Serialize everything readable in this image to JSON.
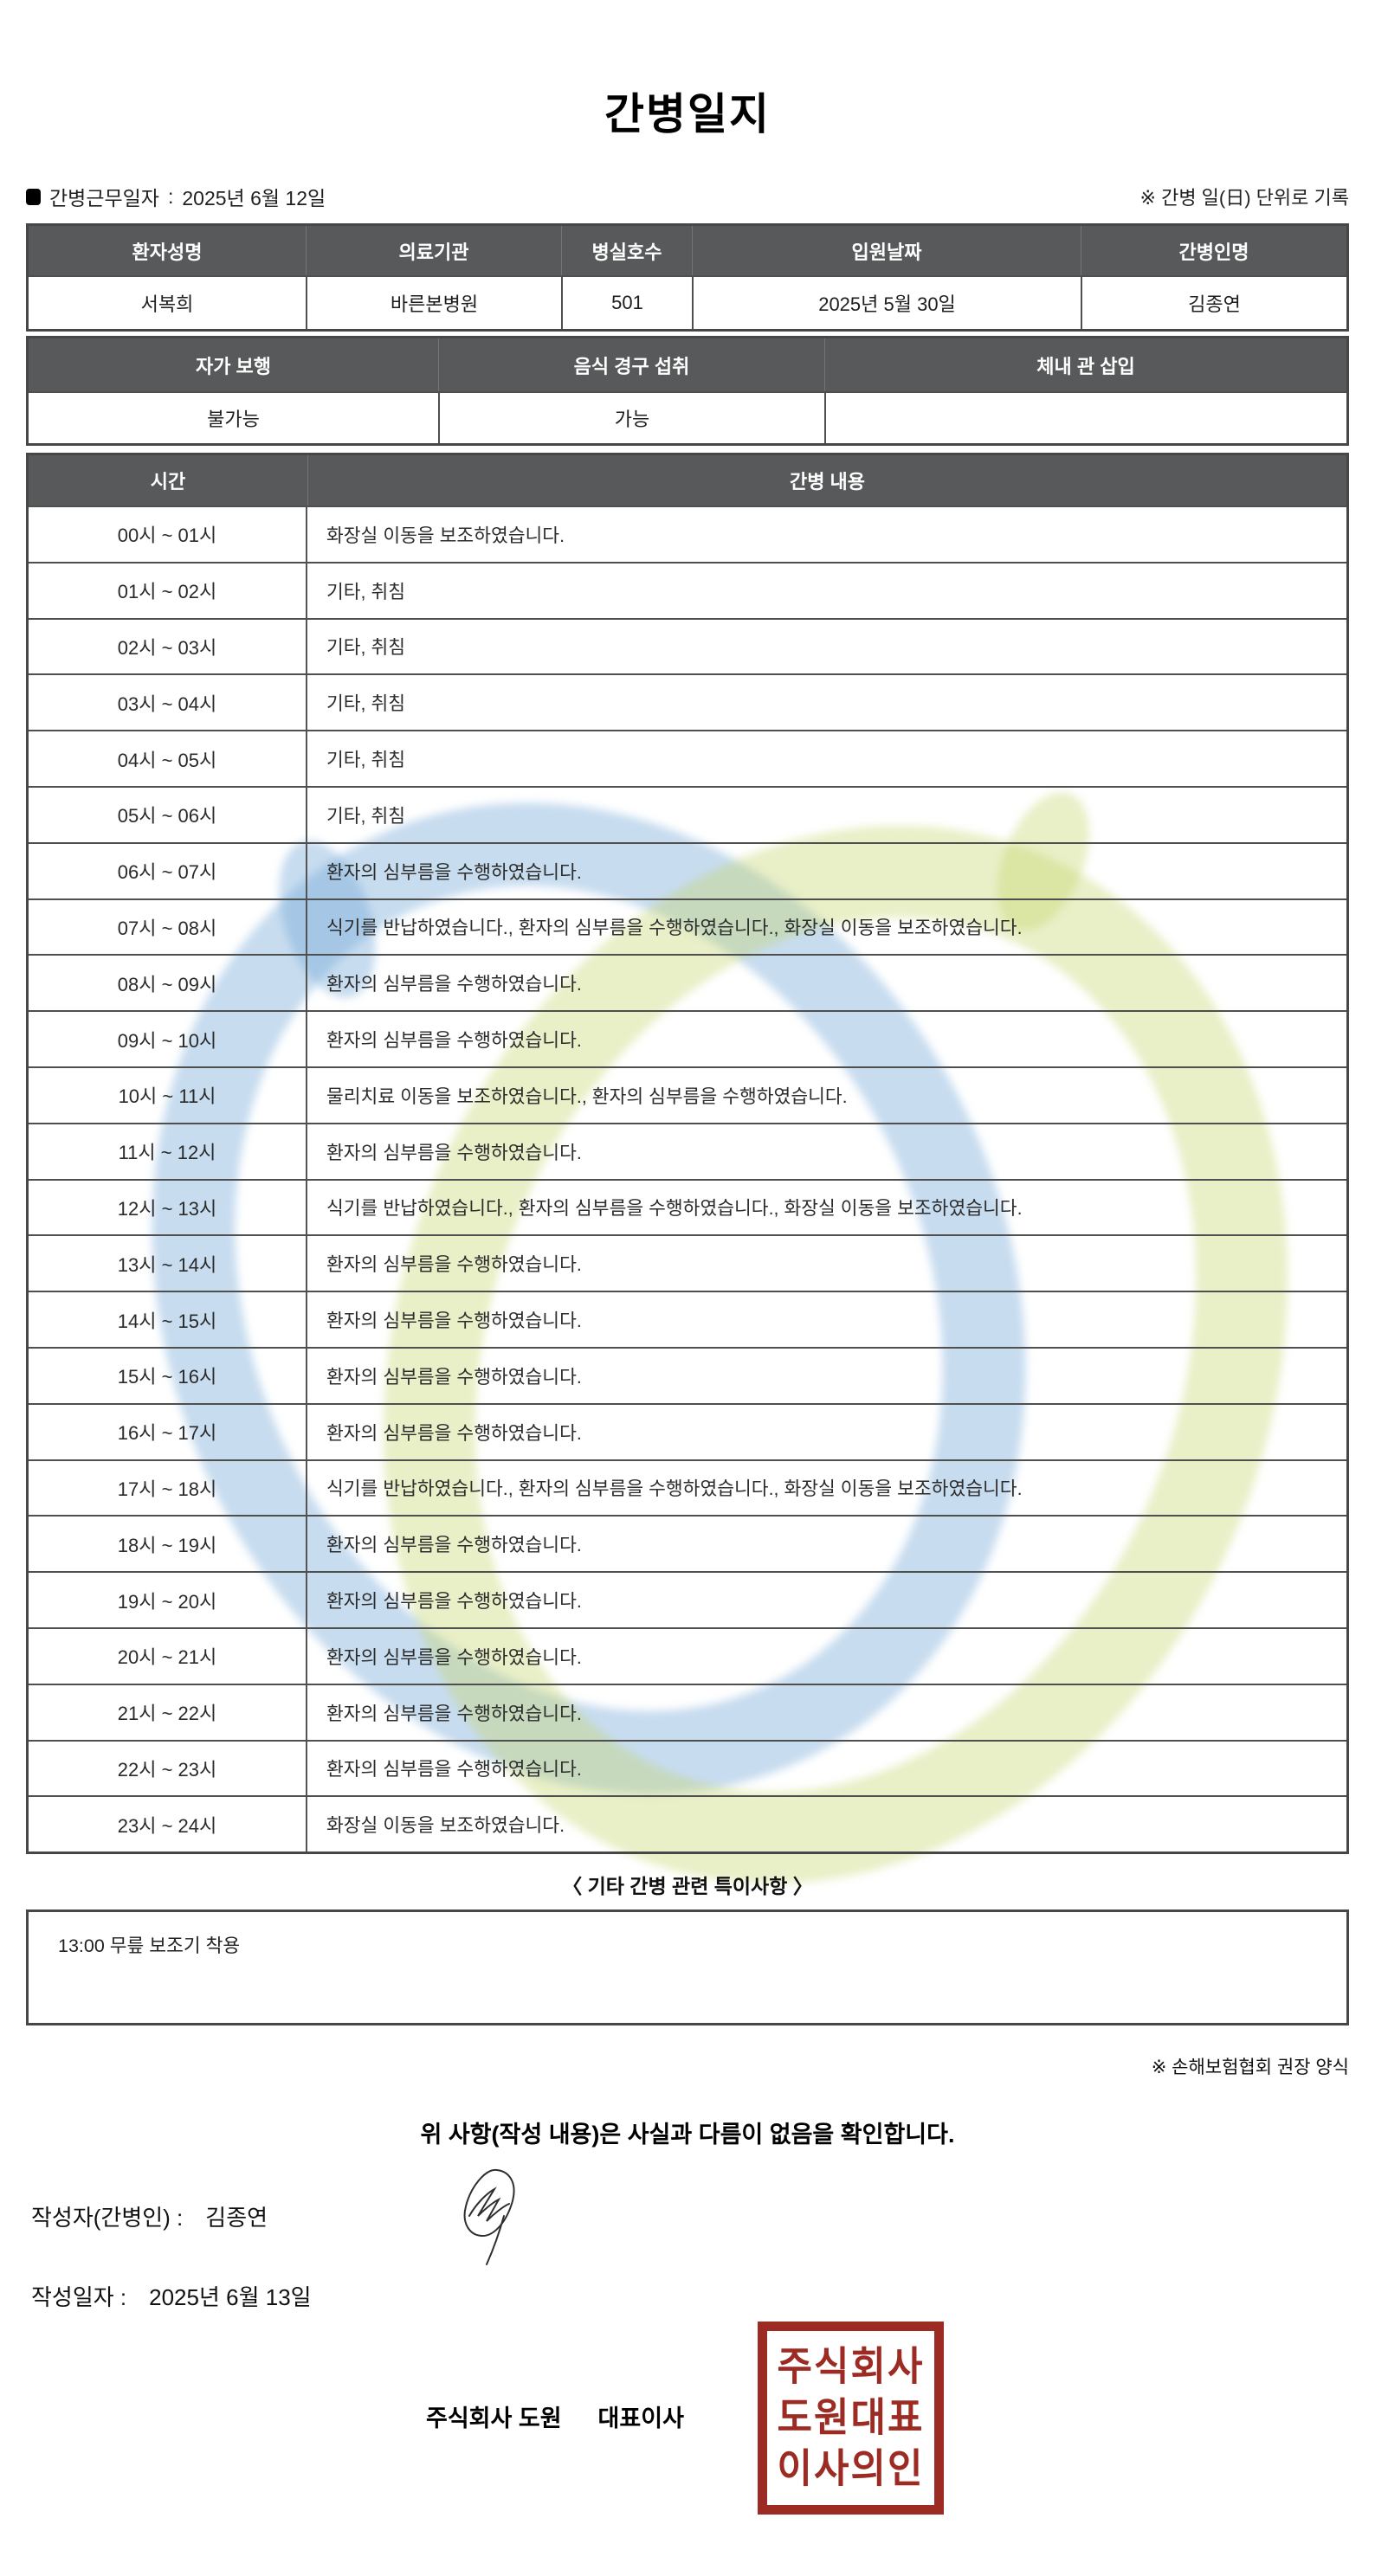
{
  "title": "간병일지",
  "header": {
    "work_date_label": "간병근무일자",
    "separator": ":",
    "work_date": "2025년 6월 12일",
    "unit_note": "※ 간병 일(日) 단위로 기록"
  },
  "patient_table": {
    "headers": [
      "환자성명",
      "의료기관",
      "병실호수",
      "입원날짜",
      "간병인명"
    ],
    "values": [
      "서복희",
      "바른본병원",
      "501",
      "2025년 5월 30일",
      "김종연"
    ]
  },
  "status_table": {
    "headers": [
      "자가 보행",
      "음식 경구 섭취",
      "체내 관 삽입"
    ],
    "values": [
      "불가능",
      "가능",
      ""
    ]
  },
  "care_table": {
    "time_header": "시간",
    "content_header": "간병 내용",
    "rows": [
      {
        "time": "00시 ~ 01시",
        "content": "화장실 이동을 보조하였습니다."
      },
      {
        "time": "01시 ~ 02시",
        "content": "기타, 취침"
      },
      {
        "time": "02시 ~ 03시",
        "content": "기타, 취침"
      },
      {
        "time": "03시 ~ 04시",
        "content": "기타, 취침"
      },
      {
        "time": "04시 ~ 05시",
        "content": "기타, 취침"
      },
      {
        "time": "05시 ~ 06시",
        "content": "기타, 취침"
      },
      {
        "time": "06시 ~ 07시",
        "content": "환자의 심부름을 수행하였습니다."
      },
      {
        "time": "07시 ~ 08시",
        "content": "식기를 반납하였습니다., 환자의 심부름을 수행하였습니다., 화장실 이동을 보조하였습니다."
      },
      {
        "time": "08시 ~ 09시",
        "content": "환자의 심부름을 수행하였습니다."
      },
      {
        "time": "09시 ~ 10시",
        "content": "환자의 심부름을 수행하였습니다."
      },
      {
        "time": "10시 ~ 11시",
        "content": "물리치료 이동을 보조하였습니다., 환자의 심부름을 수행하였습니다."
      },
      {
        "time": "11시 ~ 12시",
        "content": "환자의 심부름을 수행하였습니다."
      },
      {
        "time": "12시 ~ 13시",
        "content": "식기를 반납하였습니다., 환자의 심부름을 수행하였습니다., 화장실 이동을 보조하였습니다."
      },
      {
        "time": "13시 ~ 14시",
        "content": "환자의 심부름을 수행하였습니다."
      },
      {
        "time": "14시 ~ 15시",
        "content": "환자의 심부름을 수행하였습니다."
      },
      {
        "time": "15시 ~ 16시",
        "content": "환자의 심부름을 수행하였습니다."
      },
      {
        "time": "16시 ~ 17시",
        "content": "환자의 심부름을 수행하였습니다."
      },
      {
        "time": "17시 ~ 18시",
        "content": "식기를 반납하였습니다., 환자의 심부름을 수행하였습니다., 화장실 이동을 보조하였습니다."
      },
      {
        "time": "18시 ~ 19시",
        "content": "환자의 심부름을 수행하였습니다."
      },
      {
        "time": "19시 ~ 20시",
        "content": "환자의 심부름을 수행하였습니다."
      },
      {
        "time": "20시 ~ 21시",
        "content": "환자의 심부름을 수행하였습니다."
      },
      {
        "time": "21시 ~ 22시",
        "content": "환자의 심부름을 수행하였습니다."
      },
      {
        "time": "22시 ~ 23시",
        "content": "환자의 심부름을 수행하였습니다."
      },
      {
        "time": "23시 ~ 24시",
        "content": "화장실 이동을 보조하였습니다."
      }
    ]
  },
  "notes": {
    "heading": "〈 기타 간병 관련 특이사항 〉",
    "content": "13:00 무릎 보조기 착용"
  },
  "footer": {
    "form_note": "※ 손해보험협회 권장 양식",
    "confirmation": "위 사항(작성 내용)은 사실과 다름이 없음을 확인합니다.",
    "writer_label": "작성자(간병인) :",
    "writer_name": "김종연",
    "written_date_label": "작성일자 :",
    "written_date": "2025년 6월 13일",
    "company": "주식회사 도원",
    "ceo_title": "대표이사",
    "stamp_lines": [
      "주식회사",
      "도원대표",
      "이사의인"
    ]
  },
  "colors": {
    "table_header_bg": "#58595a",
    "stamp_red": "#9c2b23",
    "watermark_blue": "#74a7d6",
    "watermark_green": "#c5d66b"
  }
}
